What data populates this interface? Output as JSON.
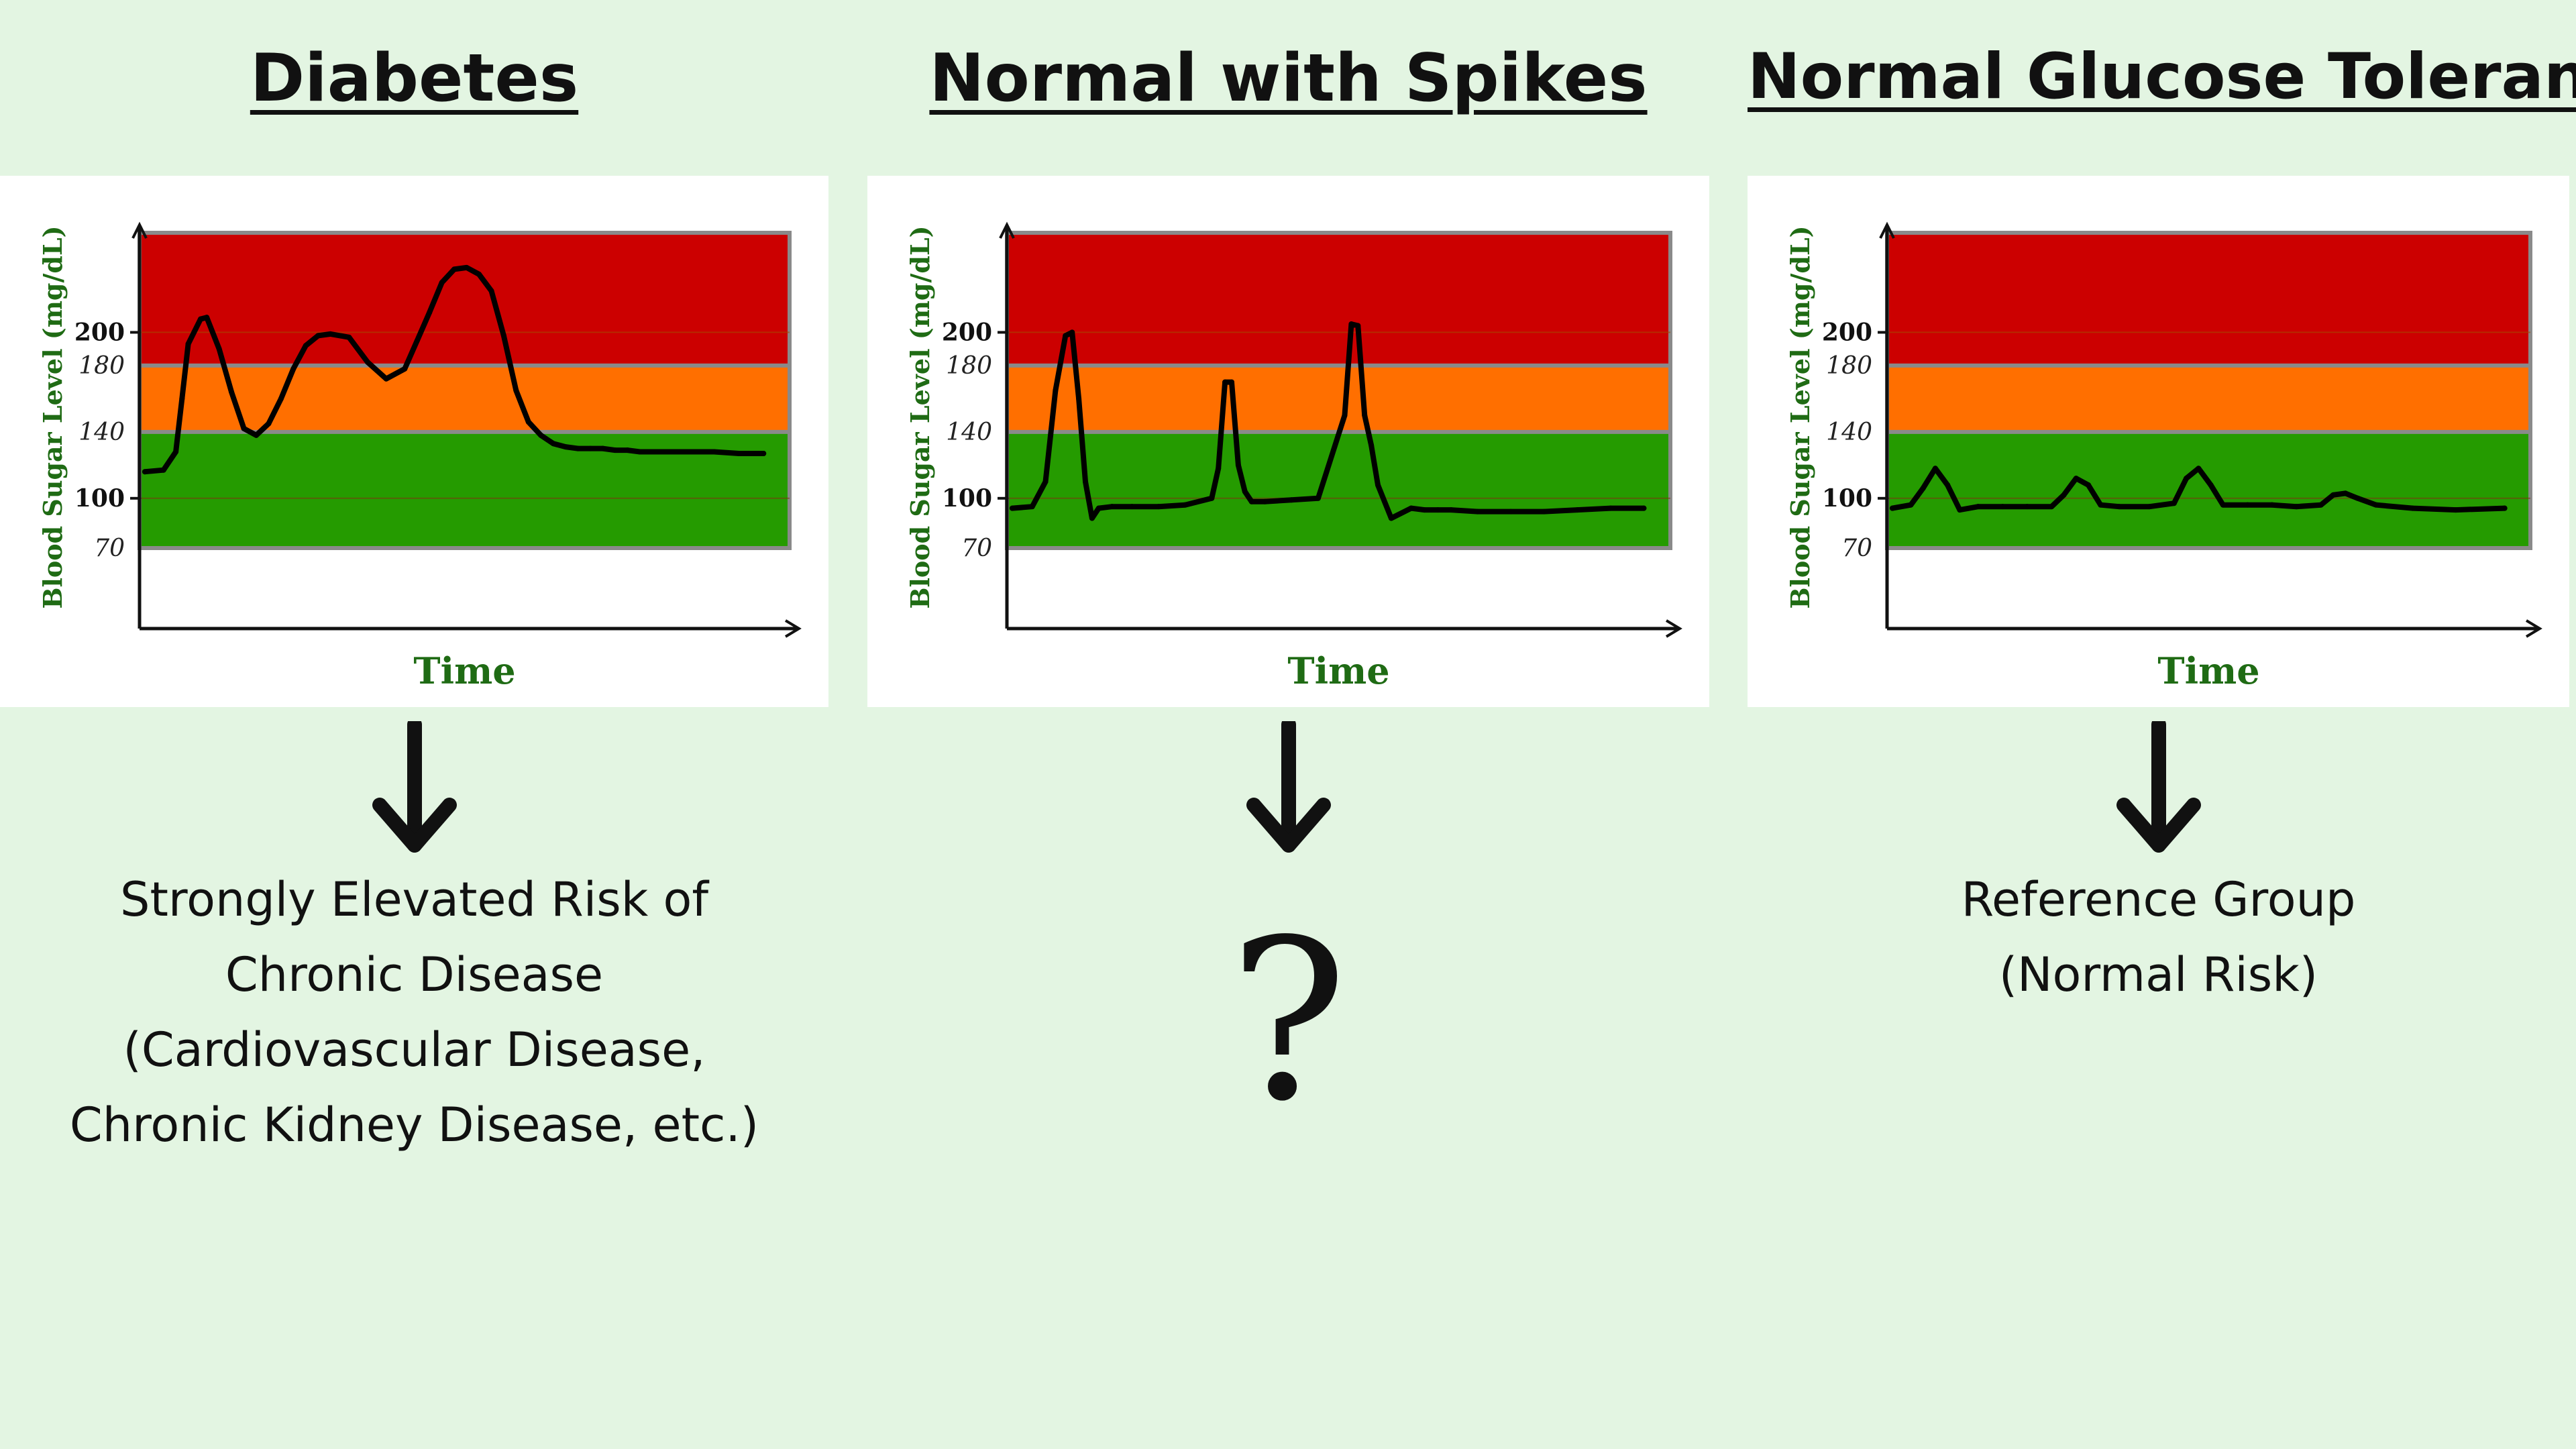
{
  "panels": [
    {
      "title": "Diabetes",
      "outcome_lines": [
        "Strongly Elevated Risk of",
        "Chronic Disease",
        "(Cardiovascular Disease,",
        "Chronic Kidney Disease, etc.)"
      ]
    },
    {
      "title": "Normal with Spikes",
      "outcome_symbol": "?"
    },
    {
      "title": "Normal Glucose Tolerance",
      "outcome_lines": [
        "Reference Group",
        "(Normal Risk)"
      ]
    }
  ],
  "colors": {
    "background": "#e3f5e2",
    "high_zone": "#cc0000",
    "elevated_zone": "#ff6f00",
    "normal_zone": "#259b00",
    "axis_label": "#1f6b14"
  },
  "chart_data": [
    {
      "type": "line",
      "title": "Diabetes",
      "xlabel": "Time",
      "ylabel": "Blood Sugar Level (mg/dL)",
      "yticks": [
        "70",
        "100",
        "140",
        "180",
        "200"
      ],
      "bands": [
        {
          "name": "normal",
          "from": 70,
          "to": 140
        },
        {
          "name": "elevated",
          "from": 140,
          "to": 180
        },
        {
          "name": "high",
          "from": 180,
          "to": 260
        }
      ],
      "x": [
        0,
        3,
        5,
        6,
        7,
        9,
        10,
        12,
        14,
        16,
        18,
        20,
        22,
        24,
        26,
        28,
        30,
        33,
        36,
        39,
        42,
        44,
        46,
        48,
        50,
        52,
        54,
        56,
        58,
        60,
        62,
        64,
        66,
        68,
        70,
        72,
        74,
        76,
        78,
        80,
        82,
        85,
        88,
        92,
        96,
        100
      ],
      "values": [
        116,
        117,
        128,
        160,
        193,
        208,
        209,
        190,
        164,
        142,
        138,
        145,
        160,
        178,
        192,
        198,
        199,
        197,
        182,
        172,
        178,
        195,
        212,
        230,
        238,
        239,
        235,
        225,
        198,
        165,
        146,
        138,
        133,
        131,
        130,
        130,
        130,
        129,
        129,
        128,
        128,
        128,
        128,
        128,
        127,
        127
      ]
    },
    {
      "type": "line",
      "title": "Normal with Spikes",
      "xlabel": "Time",
      "ylabel": "Blood Sugar Level (mg/dL)",
      "yticks": [
        "70",
        "100",
        "140",
        "180",
        "200"
      ],
      "bands": [
        {
          "name": "normal",
          "from": 70,
          "to": 140
        },
        {
          "name": "elevated",
          "from": 140,
          "to": 180
        },
        {
          "name": "high",
          "from": 180,
          "to": 260
        }
      ],
      "x": [
        0,
        3,
        5,
        6.5,
        8,
        9,
        10,
        11,
        12,
        13,
        15,
        18,
        22,
        26,
        30,
        31,
        32,
        33,
        34,
        35,
        36,
        38,
        42,
        46,
        50,
        51,
        52,
        53,
        54,
        55,
        57,
        60,
        62,
        64,
        66,
        70,
        75,
        80,
        85,
        90,
        95
      ],
      "values": [
        94,
        95,
        110,
        165,
        198,
        200,
        160,
        110,
        88,
        94,
        95,
        95,
        95,
        96,
        100,
        118,
        170,
        170,
        120,
        104,
        98,
        98,
        99,
        100,
        150,
        205,
        204,
        150,
        132,
        108,
        88,
        94,
        93,
        93,
        93,
        92,
        92,
        92,
        93,
        94,
        94
      ]
    },
    {
      "type": "line",
      "title": "Normal Glucose Tolerance",
      "xlabel": "Time",
      "ylabel": "Blood Sugar Level (mg/dL)",
      "yticks": [
        "70",
        "100",
        "140",
        "180",
        "200"
      ],
      "bands": [
        {
          "name": "normal",
          "from": 70,
          "to": 140
        },
        {
          "name": "elevated",
          "from": 140,
          "to": 180
        },
        {
          "name": "high",
          "from": 180,
          "to": 260
        }
      ],
      "x": [
        0,
        3,
        5,
        7,
        9,
        11,
        14,
        18,
        22,
        26,
        28,
        30,
        32,
        34,
        37,
        42,
        46,
        48,
        50,
        52,
        54,
        58,
        62,
        66,
        70,
        72,
        74,
        76,
        79,
        85,
        92,
        100
      ],
      "values": [
        94,
        96,
        106,
        118,
        108,
        93,
        95,
        95,
        95,
        95,
        102,
        112,
        108,
        96,
        95,
        95,
        97,
        112,
        118,
        108,
        96,
        96,
        96,
        95,
        96,
        102,
        103,
        100,
        96,
        94,
        93,
        94
      ]
    }
  ]
}
